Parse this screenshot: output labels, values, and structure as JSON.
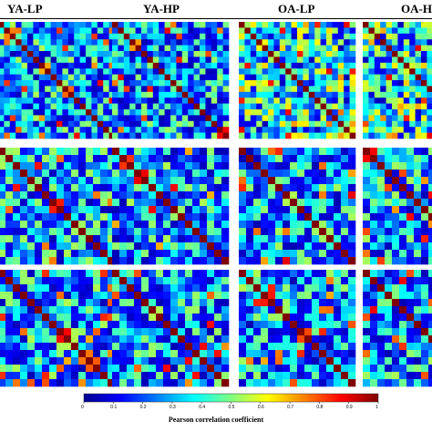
{
  "chart_data": {
    "type": "heatmap",
    "columns": [
      "YA-LP",
      "YA-HP",
      "OA-LP",
      "OA-HP"
    ],
    "rows": 3,
    "matrix_sizes": [
      20,
      16,
      16
    ],
    "colorbar": {
      "ticks": [
        "0",
        "0.1",
        "0.2",
        "0.3",
        "0.4",
        "0.5",
        "0.6",
        "0.7",
        "0.8",
        "0.9",
        "1"
      ],
      "label": "Pearson correlation coefficient",
      "range": [
        0,
        1
      ],
      "colormap": "jet"
    },
    "diagonal_value": 1
  },
  "colors": {
    "jet": [
      "#00008f",
      "#0000ff",
      "#0080ff",
      "#00ffff",
      "#80ff80",
      "#ffff00",
      "#ff8000",
      "#ff0000",
      "#800000"
    ]
  }
}
